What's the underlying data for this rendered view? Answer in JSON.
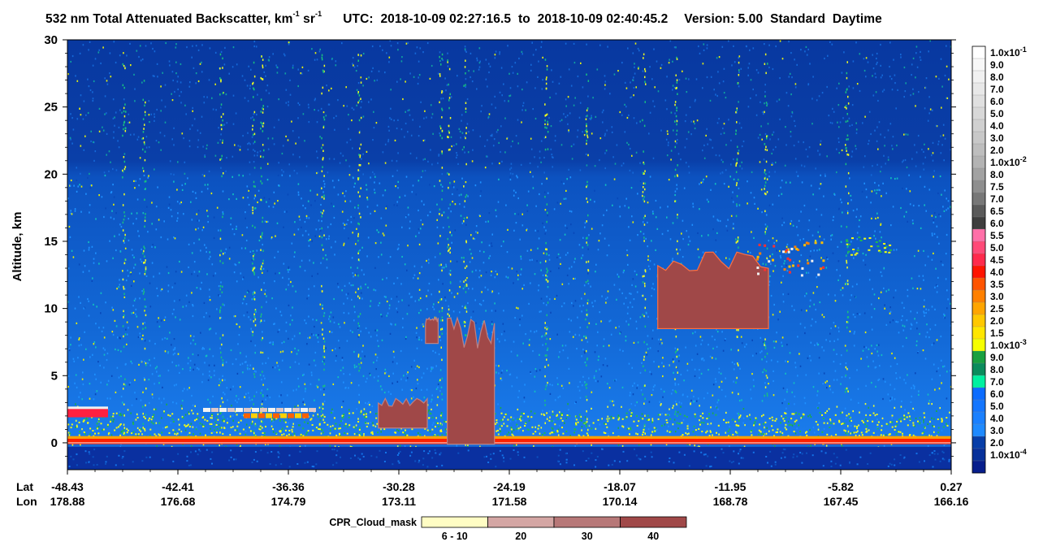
{
  "header": {
    "title_prefix": "532 nm Total Attenuated Backscatter, km",
    "title_sup1": "-1",
    "title_unit2": " sr",
    "title_sup2": "-1",
    "utc_label": "UTC:",
    "utc_start": "2018-10-09 02:27:16.5",
    "utc_to": "to",
    "utc_end": "2018-10-09 02:40:45.2",
    "version": "Version: 5.00",
    "product": "Standard",
    "mode": "Daytime"
  },
  "chart_data": {
    "type": "heatmap",
    "ylabel": "Altitude, km",
    "ylim": [
      -2,
      30
    ],
    "yticks": [
      "0",
      "5",
      "10",
      "15",
      "20",
      "25",
      "30"
    ],
    "lat_label": "Lat",
    "lon_label": "Lon",
    "lat_ticks": [
      "-48.43",
      "-42.41",
      "-36.36",
      "-30.28",
      "-24.19",
      "-18.07",
      "-11.95",
      "-5.82",
      "0.27"
    ],
    "lon_ticks": [
      "178.88",
      "176.68",
      "174.79",
      "173.11",
      "171.58",
      "170.14",
      "168.78",
      "167.45",
      "166.16"
    ],
    "colorbar": {
      "labels": [
        "1.0x10",
        "9.0",
        "8.0",
        "7.0",
        "6.0",
        "5.0",
        "4.0",
        "3.0",
        "2.0",
        "1.0x10",
        "8.0",
        "7.5",
        "7.0",
        "6.5",
        "6.0",
        "5.5",
        "5.0",
        "4.5",
        "4.0",
        "3.5",
        "3.0",
        "2.5",
        "2.0",
        "1.5",
        "1.0x10",
        "9.0",
        "8.0",
        "7.0",
        "6.0",
        "5.0",
        "4.0",
        "3.0",
        "2.0",
        "1.0x10"
      ],
      "exponents": {
        "0": "-1",
        "9": "-2",
        "24": "-3",
        "33": "-4"
      },
      "colors": [
        "#ffffff",
        "#f8f8f8",
        "#f1f1f1",
        "#e8e8e8",
        "#e0e0e0",
        "#d8d8d8",
        "#d0d0d0",
        "#c8c8c8",
        "#bebebe",
        "#b3b3b3",
        "#a2a2a2",
        "#8e8e8e",
        "#777777",
        "#5a5a5a",
        "#3e3e3e",
        "#ff6fa8",
        "#ff4a78",
        "#ff2a4c",
        "#ff1400",
        "#ff5400",
        "#ff8000",
        "#ffa500",
        "#ffc800",
        "#ffe600",
        "#f6ff00",
        "#18a040",
        "#0a8c5c",
        "#00f0a0",
        "#0c6cff",
        "#1476ff",
        "#1a80ff",
        "#1e8aff",
        "#073ea8",
        "#06309a",
        "#071e8c"
      ]
    },
    "cpr_mask": {
      "title": "CPR_Cloud_mask",
      "classes": [
        "6 - 10",
        "20",
        "30",
        "40"
      ],
      "colors": [
        "#fffdc4",
        "#d4a6a4",
        "#b77878",
        "#a04848"
      ]
    },
    "features": {
      "clouds_cpr": [
        {
          "lat_range": [
            -27.5,
            -24.9
          ],
          "alt": [
            -0.1,
            9.3
          ],
          "cpr": 40
        },
        {
          "lat_range": [
            -31.3,
            -28.6
          ],
          "alt": [
            1.1,
            3.3
          ],
          "cpr": 40
        },
        {
          "lat_range": [
            -15.9,
            -9.8
          ],
          "alt": [
            8.5,
            14.2
          ],
          "cpr": 40
        },
        {
          "lat_range": [
            -28.7,
            -28.0
          ],
          "alt": [
            7.4,
            9.3
          ],
          "cpr": 40
        }
      ],
      "surface_alt_km": 0
    }
  },
  "colors": {
    "background_blue": "#0a3da0",
    "noise_blue": "#1a80ff",
    "surface_red": "#ff2000"
  }
}
